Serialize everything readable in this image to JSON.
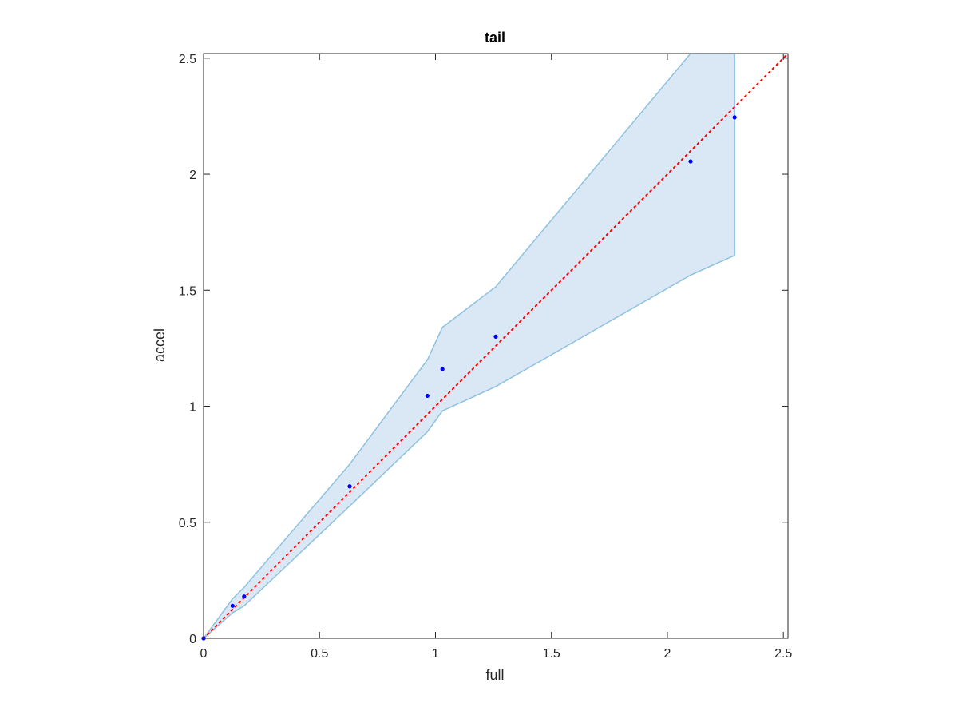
{
  "chart_data": {
    "type": "scatter",
    "title": "tail",
    "xlabel": "full",
    "ylabel": "accel",
    "xlim": [
      0,
      2.52
    ],
    "ylim": [
      0,
      2.52
    ],
    "xticks": [
      0,
      0.5,
      1,
      1.5,
      2,
      2.5
    ],
    "yticks": [
      0,
      0.5,
      1,
      1.5,
      2,
      2.5
    ],
    "xtick_labels": [
      "0",
      "0.5",
      "1",
      "1.5",
      "2",
      "2.5"
    ],
    "ytick_labels": [
      "0",
      "0.5",
      "1",
      "1.5",
      "2",
      "2.5"
    ],
    "grid": false,
    "points": {
      "x": [
        0,
        0.125,
        0.175,
        0.63,
        0.965,
        1.03,
        1.26,
        2.1,
        2.29
      ],
      "y": [
        0,
        0.14,
        0.18,
        0.655,
        1.045,
        1.16,
        1.3,
        2.055,
        2.245
      ],
      "color": "#0000ff"
    },
    "band": {
      "x": [
        0,
        0.125,
        0.175,
        0.63,
        0.965,
        1.03,
        1.26,
        2.1,
        2.29
      ],
      "upper": [
        0,
        0.17,
        0.22,
        0.75,
        1.2,
        1.34,
        1.515,
        2.52,
        2.52
      ],
      "lower": [
        0,
        0.11,
        0.14,
        0.57,
        0.89,
        0.98,
        1.085,
        1.565,
        1.65
      ],
      "fill": "#d9e8f4",
      "stroke": "#8ec1e0"
    },
    "reference_line": {
      "x": [
        0,
        2.52
      ],
      "y": [
        0,
        2.52
      ],
      "color": "#ff0000",
      "style": "dotted"
    }
  }
}
